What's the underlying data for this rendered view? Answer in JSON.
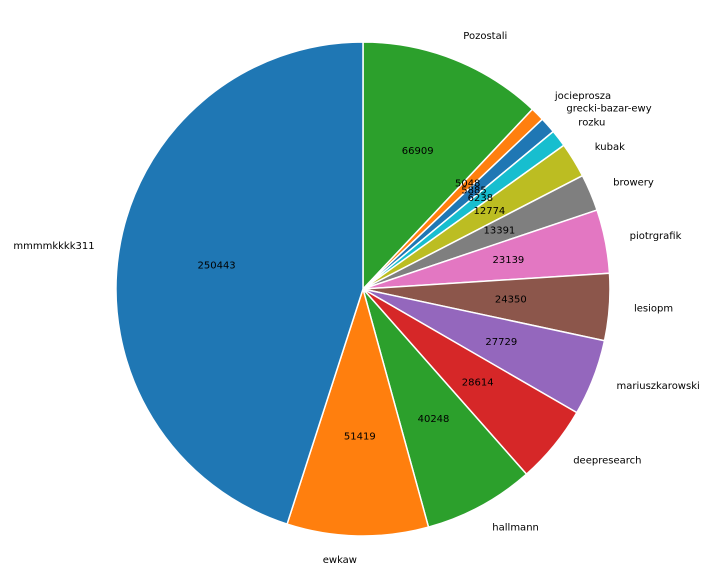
{
  "chart_data": {
    "type": "pie",
    "title": "",
    "slices": [
      {
        "label": "Pozostali",
        "value": 66909,
        "value_label": "66909",
        "color": "#2ca02c"
      },
      {
        "label": "jocieprosza",
        "value": 5048,
        "value_label": "5048",
        "color": "#ff7f0e"
      },
      {
        "label": "grecki-bazar-ewy",
        "value": 5885,
        "value_label": "5885",
        "color": "#1f77b4"
      },
      {
        "label": "rozku",
        "value": 6238,
        "value_label": "6238",
        "color": "#17becf"
      },
      {
        "label": "kubak",
        "value": 12774,
        "value_label": "12774",
        "color": "#bcbd22"
      },
      {
        "label": "browery",
        "value": 13391,
        "value_label": "13391",
        "color": "#7f7f7f"
      },
      {
        "label": "piotrgrafik",
        "value": 23139,
        "value_label": "23139",
        "color": "#e377c2"
      },
      {
        "label": "lesiopm",
        "value": 24350,
        "value_label": "24350",
        "color": "#8c564b"
      },
      {
        "label": "mariuszkarowski",
        "value": 27729,
        "value_label": "27729",
        "color": "#9467bd"
      },
      {
        "label": "deepresearch",
        "value": 28614,
        "value_label": "28614",
        "color": "#d62728"
      },
      {
        "label": "hallmann",
        "value": 40248,
        "value_label": "40248",
        "color": "#2ca02c"
      },
      {
        "label": "ewkaw",
        "value": 51419,
        "value_label": "51419",
        "color": "#ff7f0e"
      },
      {
        "label": "mmmmkkkk311",
        "value": 250443,
        "value_label": "250443",
        "color": "#1f77b4"
      }
    ],
    "start_angle_deg": 90,
    "direction": "clockwise",
    "legend": "none"
  }
}
